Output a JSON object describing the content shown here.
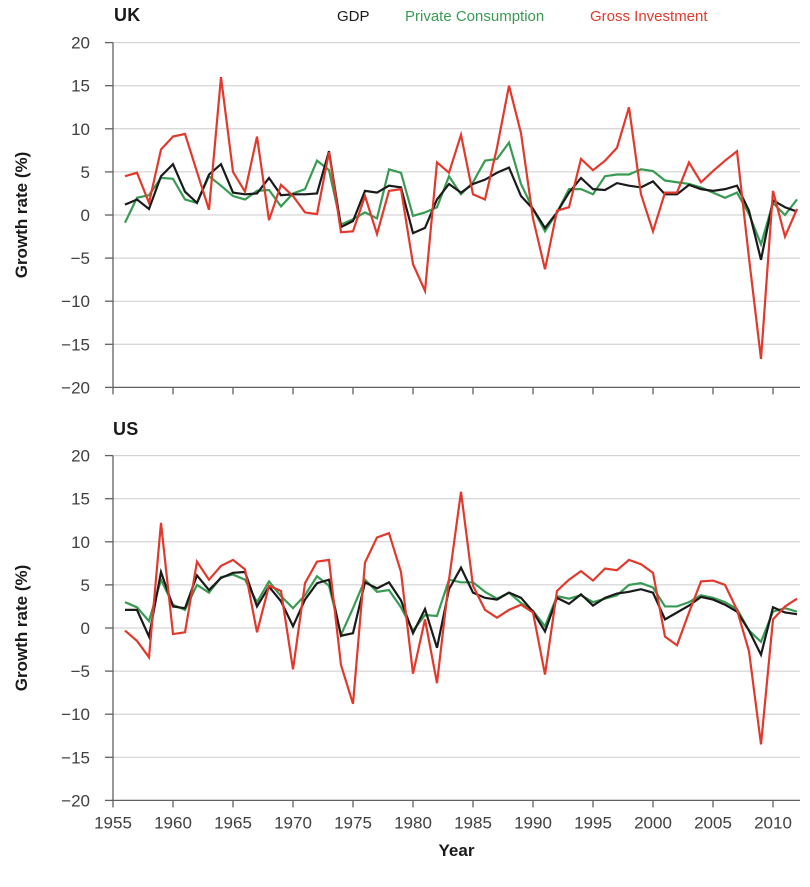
{
  "figure": {
    "background": "#ffffff",
    "grid_color": "#cbcbcb",
    "axis_color": "#606060",
    "tick_label_color": "#404040"
  },
  "legend": {
    "position": "top",
    "items": [
      {
        "label": "GDP",
        "color": "#1a1a1a"
      },
      {
        "label": "Private Consumption",
        "color": "#399b53"
      },
      {
        "label": "Gross Investment",
        "color": "#e2392c"
      }
    ]
  },
  "chart_data": [
    {
      "type": "line",
      "title": "UK",
      "ylabel": "Growth rate (%)",
      "xlabel": "",
      "ylim": [
        -20,
        20
      ],
      "yticks": [
        20,
        15,
        10,
        5,
        0,
        -5,
        -10,
        -15,
        -20
      ],
      "xticks": [
        1955,
        1960,
        1965,
        1970,
        1975,
        1980,
        1985,
        1990,
        1995,
        2000,
        2005,
        2010
      ],
      "grid": true,
      "show_x_tick_labels": false,
      "years": [
        1956,
        1957,
        1958,
        1959,
        1960,
        1961,
        1962,
        1963,
        1964,
        1965,
        1966,
        1967,
        1968,
        1969,
        1970,
        1971,
        1972,
        1973,
        1974,
        1975,
        1976,
        1977,
        1978,
        1979,
        1980,
        1981,
        1982,
        1983,
        1984,
        1985,
        1986,
        1987,
        1988,
        1989,
        1990,
        1991,
        1992,
        1993,
        1994,
        1995,
        1996,
        1997,
        1998,
        1999,
        2000,
        2001,
        2002,
        2003,
        2004,
        2005,
        2006,
        2007,
        2008,
        2009,
        2010,
        2011,
        2012
      ],
      "series": [
        {
          "name": "GDP",
          "color": "#1a1a1a",
          "values": [
            1.2,
            1.8,
            0.7,
            4.5,
            5.9,
            2.7,
            1.4,
            4.7,
            5.9,
            2.6,
            2.4,
            2.5,
            4.3,
            2.3,
            2.4,
            2.4,
            2.5,
            7.4,
            -1.4,
            -0.7,
            2.8,
            2.6,
            3.4,
            3.2,
            -2.1,
            -1.5,
            1.8,
            3.6,
            2.6,
            3.6,
            4.1,
            4.9,
            5.5,
            2.2,
            0.7,
            -1.5,
            0.3,
            2.6,
            4.3,
            3.0,
            2.9,
            3.7,
            3.4,
            3.2,
            3.9,
            2.4,
            2.4,
            3.5,
            3.0,
            2.8,
            3.0,
            3.4,
            0.5,
            -5.2,
            1.7,
            0.9,
            0.4
          ]
        },
        {
          "name": "Private Consumption",
          "color": "#399b53",
          "values": [
            -0.9,
            2.0,
            2.3,
            4.3,
            4.2,
            1.8,
            1.4,
            4.5,
            3.4,
            2.2,
            1.8,
            2.8,
            2.9,
            1.0,
            2.5,
            3.0,
            6.3,
            5.2,
            -1.1,
            -0.5,
            0.3,
            -0.4,
            5.3,
            4.9,
            -0.1,
            0.3,
            0.9,
            4.5,
            2.4,
            3.8,
            6.3,
            6.5,
            8.4,
            3.6,
            0.7,
            -1.9,
            0.3,
            3.0,
            3.0,
            2.4,
            4.5,
            4.7,
            4.7,
            5.3,
            5.1,
            4.0,
            3.8,
            3.6,
            3.2,
            2.6,
            2.0,
            2.6,
            0.1,
            -3.4,
            1.4,
            0.0,
            1.8
          ]
        },
        {
          "name": "Gross Investment",
          "color": "#e2392c",
          "values": [
            4.5,
            4.9,
            1.4,
            7.6,
            9.1,
            9.4,
            5.0,
            0.6,
            16.0,
            5.0,
            2.7,
            9.1,
            -0.6,
            3.5,
            2.2,
            0.3,
            0.1,
            7.3,
            -2.0,
            -1.9,
            2.2,
            -2.2,
            2.8,
            3.0,
            -5.7,
            -8.8,
            6.1,
            4.9,
            9.3,
            2.4,
            1.8,
            7.8,
            15.0,
            9.5,
            -0.4,
            -6.3,
            0.5,
            0.9,
            6.5,
            5.2,
            6.3,
            7.8,
            12.5,
            2.4,
            -1.9,
            2.6,
            2.6,
            6.1,
            3.8,
            5.1,
            6.3,
            7.4,
            -5.0,
            -16.7,
            2.8,
            -2.5,
            0.7
          ]
        }
      ]
    },
    {
      "type": "line",
      "title": "US",
      "ylabel": "Growth rate (%)",
      "xlabel": "Year",
      "ylim": [
        -20,
        20
      ],
      "yticks": [
        20,
        15,
        10,
        5,
        0,
        -5,
        -10,
        -15,
        -20
      ],
      "xticks": [
        1955,
        1960,
        1965,
        1970,
        1975,
        1980,
        1985,
        1990,
        1995,
        2000,
        2005,
        2010
      ],
      "grid": true,
      "show_x_tick_labels": true,
      "years": [
        1956,
        1957,
        1958,
        1959,
        1960,
        1961,
        1962,
        1963,
        1964,
        1965,
        1966,
        1967,
        1968,
        1969,
        1970,
        1971,
        1972,
        1973,
        1974,
        1975,
        1976,
        1977,
        1978,
        1979,
        1980,
        1981,
        1982,
        1983,
        1984,
        1985,
        1986,
        1987,
        1988,
        1989,
        1990,
        1991,
        1992,
        1993,
        1994,
        1995,
        1996,
        1997,
        1998,
        1999,
        2000,
        2001,
        2002,
        2003,
        2004,
        2005,
        2006,
        2007,
        2008,
        2009,
        2010,
        2011,
        2012
      ],
      "series": [
        {
          "name": "GDP",
          "color": "#1a1a1a",
          "values": [
            2.1,
            2.1,
            -1.0,
            6.5,
            2.5,
            2.3,
            6.1,
            4.4,
            5.8,
            6.4,
            6.5,
            2.5,
            4.8,
            3.1,
            0.2,
            3.3,
            5.2,
            5.6,
            -0.9,
            -0.6,
            5.3,
            4.6,
            5.3,
            3.2,
            -0.6,
            2.2,
            -2.3,
            4.5,
            7.0,
            4.1,
            3.5,
            3.3,
            4.1,
            3.5,
            1.9,
            -0.4,
            3.5,
            2.8,
            3.9,
            2.6,
            3.5,
            4.0,
            4.2,
            4.5,
            4.1,
            1.0,
            1.8,
            2.6,
            3.6,
            3.3,
            2.7,
            1.9,
            -0.3,
            -3.1,
            2.4,
            1.8,
            1.6
          ]
        },
        {
          "name": "Private Consumption",
          "color": "#399b53",
          "values": [
            3.0,
            2.4,
            0.8,
            5.6,
            2.7,
            2.1,
            5.0,
            4.1,
            5.9,
            6.2,
            5.6,
            3.0,
            5.4,
            3.7,
            2.3,
            3.8,
            6.0,
            4.9,
            -0.8,
            2.3,
            5.6,
            4.2,
            4.4,
            2.4,
            -0.3,
            1.5,
            1.4,
            5.6,
            5.3,
            5.3,
            4.2,
            3.4,
            4.1,
            2.9,
            2.0,
            0.2,
            3.7,
            3.4,
            3.8,
            3.0,
            3.4,
            3.8,
            5.0,
            5.2,
            4.7,
            2.5,
            2.5,
            3.0,
            3.8,
            3.5,
            3.0,
            2.2,
            -0.3,
            -1.6,
            1.9,
            2.3,
            1.9
          ]
        },
        {
          "name": "Gross Investment",
          "color": "#e2392c",
          "values": [
            -0.3,
            -1.5,
            -3.4,
            12.2,
            -0.7,
            -0.5,
            7.7,
            5.6,
            7.2,
            7.9,
            6.8,
            -0.5,
            4.9,
            4.3,
            -4.8,
            5.2,
            7.7,
            7.9,
            -4.3,
            -8.8,
            7.6,
            10.5,
            11.0,
            6.5,
            -5.3,
            1.0,
            -6.4,
            5.6,
            15.8,
            4.9,
            2.1,
            1.2,
            2.1,
            2.7,
            1.8,
            -5.4,
            4.3,
            5.6,
            6.6,
            5.5,
            6.9,
            6.7,
            7.9,
            7.4,
            6.4,
            -1.0,
            -2.0,
            1.8,
            5.4,
            5.5,
            5.0,
            2.1,
            -2.7,
            -13.5,
            1.0,
            2.5,
            3.4
          ]
        }
      ]
    }
  ]
}
